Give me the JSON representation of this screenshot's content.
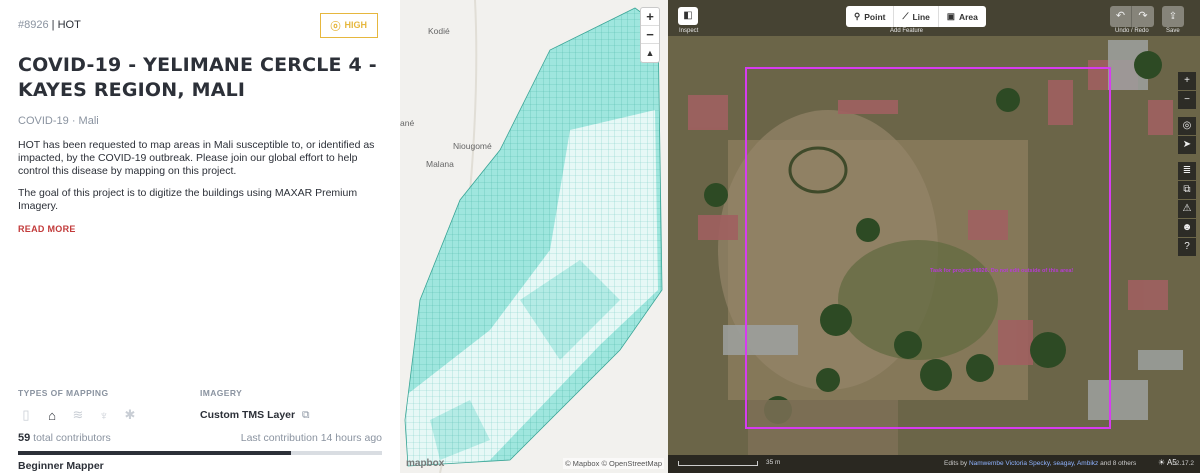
{
  "project": {
    "id": "#8926",
    "organisation": "HOT",
    "priority": "HIGH",
    "priority_icon": "ⓞ",
    "title": "COVID-19 - YELIMANE CERCLE 4 - KAYES REGION, MALI",
    "campaign": "COVID-19",
    "country": "Mali",
    "description_1": "HOT has been requested to map areas in Mali susceptible to, or identified as impacted, by the COVID-19 outbreak. Please join our global effort to help control this disease by mapping on this project.",
    "description_2": "The goal of this project is to digitize the buildings using MAXAR Premium Imagery.",
    "read_more": "READ MORE",
    "types_heading": "TYPES OF MAPPING",
    "mapping_types": [
      {
        "icon": "road-icon",
        "glyph": "▯",
        "active": false
      },
      {
        "icon": "buildings-icon",
        "glyph": "⌂",
        "active": true
      },
      {
        "icon": "waterways-icon",
        "glyph": "≋",
        "active": false
      },
      {
        "icon": "landuse-icon",
        "glyph": "♆",
        "active": false
      },
      {
        "icon": "other-icon",
        "glyph": "✱",
        "active": false
      }
    ],
    "imagery_heading": "IMAGERY",
    "imagery": "Custom TMS Layer",
    "copy_icon": "⧉",
    "contributors_count": "59",
    "contributors_label": "total contributors",
    "last_contribution": "Last contribution 14 hours ago",
    "progress_percent": 75,
    "mapper_level": "Beginner Mapper"
  },
  "task_map": {
    "zoom_in": "+",
    "zoom_out": "−",
    "compass": "▲",
    "places": [
      "Kodié",
      "ané",
      "Niougomé",
      "Malana"
    ],
    "logo": "mapbox",
    "attribution": "© Mapbox © OpenStreetMap"
  },
  "editor": {
    "inspect_icon": "◧",
    "inspect_label": "Inspect",
    "modes": [
      {
        "icon": "point-icon",
        "glyph": "⚲",
        "label": "Point"
      },
      {
        "icon": "line-icon",
        "glyph": "⟋",
        "label": "Line"
      },
      {
        "icon": "area-icon",
        "glyph": "▣",
        "label": "Area"
      }
    ],
    "add_feature_label": "Add Feature",
    "undo_glyph": "↶",
    "redo_glyph": "↷",
    "undo_redo_label": "Undo / Redo",
    "save_glyph": "⇪",
    "save_label": "Save",
    "side_controls": [
      "+",
      "−",
      "◎",
      "➤",
      "≣",
      "⧉",
      "⚠",
      "☻",
      "?"
    ],
    "task_note": "Task for project #8926. Do not edit outside of this area!",
    "scale": "35 m",
    "edits_prefix": "Edits by",
    "edits_users": "Namwembe Victoria Specky, seagay, Ambikz",
    "edits_suffix": "and 8 others",
    "version": "2.17.2",
    "status_icons": "☀ A5"
  }
}
